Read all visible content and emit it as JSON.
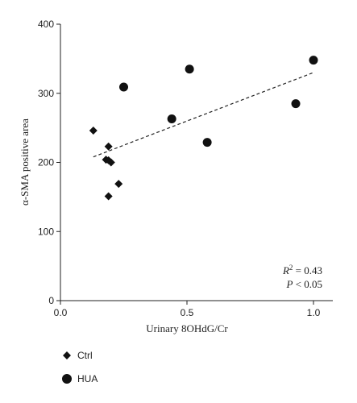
{
  "chart_data": {
    "type": "scatter",
    "xlabel": "Urinary 8OHdG/Cr",
    "ylabel": "α-SMA positive area",
    "xlim": [
      0.0,
      1.05
    ],
    "ylim": [
      0,
      400
    ],
    "xticks": [
      0.0,
      0.5,
      1.0
    ],
    "xtick_labels": [
      "0.0",
      "0.5",
      "1.0"
    ],
    "yticks": [
      0,
      100,
      200,
      300,
      400
    ],
    "ytick_labels": [
      "0",
      "100",
      "200",
      "300",
      "400"
    ],
    "grid": false,
    "legend_position": "bottom-left",
    "series": [
      {
        "name": "Ctrl",
        "marker": "diamond",
        "color": "#111111",
        "x": [
          0.13,
          0.18,
          0.19,
          0.2,
          0.19,
          0.23,
          0.19
        ],
        "y": [
          246,
          204,
          223,
          200,
          151,
          169,
          203
        ]
      },
      {
        "name": "HUA",
        "marker": "circle",
        "color": "#111111",
        "x": [
          0.25,
          0.44,
          0.51,
          0.58,
          0.93,
          1.0
        ],
        "y": [
          309,
          263,
          335,
          229,
          285,
          348
        ]
      }
    ],
    "trendline": {
      "style": "dashed",
      "x": [
        0.13,
        1.0
      ],
      "y": [
        208,
        330
      ]
    },
    "annotation": {
      "r2_label": "R",
      "r2_exp": "2",
      "r2_value": " = 0.43",
      "p_label": "P",
      "p_value": " < 0.05"
    }
  }
}
